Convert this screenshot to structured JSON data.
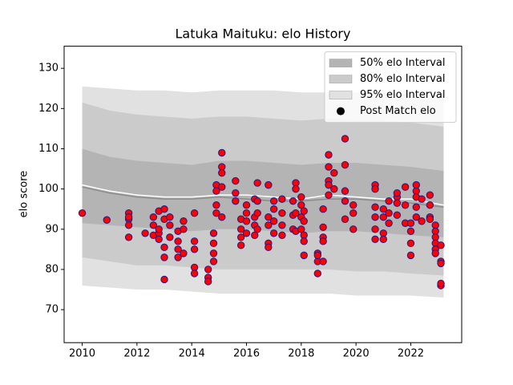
{
  "chart_data": {
    "type": "band_scatter",
    "title": "Latuka Maituku: elo History",
    "y_label": "elo score",
    "xlim": [
      2009.34,
      2023.86
    ],
    "ylim": [
      61.8,
      135.5
    ],
    "xticks": [
      2010,
      2012,
      2014,
      2016,
      2018,
      2020,
      2022
    ],
    "yticks": [
      70,
      80,
      90,
      100,
      110,
      120,
      130
    ],
    "legend": "upper right",
    "band_x": [
      2010,
      2011,
      2012,
      2013,
      2014,
      2015,
      2016,
      2017,
      2018,
      2019,
      2020,
      2021,
      2022,
      2023.2
    ],
    "series": [
      {
        "name": "50% elo Interval",
        "color": "#b4b4b4",
        "upper": [
          110,
          108,
          107,
          106.5,
          106,
          107,
          107,
          106.5,
          106,
          106.5,
          106.5,
          106,
          105.5,
          104.5
        ],
        "lower": [
          91.5,
          91,
          90.5,
          90,
          89.5,
          90,
          90,
          89.5,
          89,
          89.5,
          89.5,
          89,
          88.5,
          88
        ]
      },
      {
        "name": "80% elo Interval",
        "color": "#cbcbcb",
        "upper": [
          121.5,
          119.5,
          118.5,
          118,
          117.5,
          118,
          118,
          117.5,
          117,
          117.5,
          117,
          117,
          116.5,
          115.5
        ],
        "lower": [
          83,
          82,
          81,
          81,
          80.5,
          80,
          80,
          80,
          80,
          80,
          79.5,
          79.5,
          79,
          78.5
        ]
      },
      {
        "name": "95% elo Interval",
        "color": "#e1e1e1",
        "upper": [
          125.5,
          125,
          124.5,
          124.5,
          124,
          124.5,
          124.5,
          124.5,
          124,
          124,
          124,
          124,
          123.5,
          123
        ],
        "lower": [
          76,
          75.5,
          75,
          75,
          74.5,
          74,
          74,
          74,
          74,
          74,
          73.5,
          73.5,
          73.5,
          73
        ]
      },
      {
        "name": "Post Match elo",
        "color": "#ff0000",
        "edge_color": "#1a1a8c",
        "x": [
          2010.0,
          2010.9,
          2011.7,
          2011.7,
          2011.7,
          2011.7,
          2011.7,
          2012.3,
          2012.6,
          2012.6,
          2012.6,
          2012.8,
          2012.8,
          2012.8,
          2012.8,
          2013.0,
          2013.0,
          2013.0,
          2013.0,
          2013.0,
          2013.2,
          2013.2,
          2013.2,
          2013.5,
          2013.5,
          2013.5,
          2013.5,
          2013.7,
          2013.7,
          2013.7,
          2014.1,
          2014.1,
          2014.1,
          2014.1,
          2014.1,
          2014.6,
          2014.6,
          2014.6,
          2014.8,
          2014.8,
          2014.8,
          2014.8,
          2014.9,
          2014.9,
          2014.9,
          2014.9,
          2015.1,
          2015.1,
          2015.1,
          2015.1,
          2015.1,
          2015.6,
          2015.6,
          2015.6,
          2015.8,
          2015.8,
          2015.8,
          2015.8,
          2016.0,
          2016.0,
          2016.0,
          2016.0,
          2016.3,
          2016.3,
          2016.3,
          2016.3,
          2016.4,
          2016.4,
          2016.4,
          2016.4,
          2016.8,
          2016.8,
          2016.8,
          2016.8,
          2016.8,
          2017.0,
          2017.0,
          2017.0,
          2017.0,
          2017.3,
          2017.3,
          2017.3,
          2017.3,
          2017.7,
          2017.7,
          2017.7,
          2017.8,
          2017.8,
          2017.8,
          2017.8,
          2018.0,
          2018.0,
          2018.0,
          2018.0,
          2018.1,
          2018.1,
          2018.1,
          2018.1,
          2018.1,
          2018.6,
          2018.6,
          2018.6,
          2018.6,
          2018.8,
          2018.8,
          2018.8,
          2018.8,
          2018.8,
          2019.0,
          2019.0,
          2019.0,
          2019.0,
          2019.0,
          2019.2,
          2019.2,
          2019.6,
          2019.6,
          2019.6,
          2019.6,
          2019.6,
          2019.9,
          2019.9,
          2019.9,
          2020.7,
          2020.7,
          2020.7,
          2020.7,
          2020.7,
          2020.7,
          2021.0,
          2021.0,
          2021.0,
          2021.0,
          2021.2,
          2021.2,
          2021.2,
          2021.5,
          2021.5,
          2021.5,
          2021.5,
          2021.8,
          2021.8,
          2021.8,
          2022.0,
          2022.0,
          2022.0,
          2022.0,
          2022.2,
          2022.2,
          2022.2,
          2022.2,
          2022.2,
          2022.4,
          2022.4,
          2022.7,
          2022.7,
          2022.7,
          2022.7,
          2022.9,
          2022.9,
          2022.9,
          2022.9,
          2022.9,
          2022.9,
          2023.1,
          2023.1,
          2023.1,
          2023.1,
          2023.1
        ],
        "values": [
          94,
          92.3,
          92.5,
          91,
          88,
          94,
          93,
          89,
          93,
          91,
          88.5,
          89,
          87.5,
          94.5,
          90,
          95,
          92.5,
          85.5,
          83,
          77.5,
          93,
          91,
          88,
          89.5,
          87,
          83,
          85,
          92,
          90,
          84,
          94,
          87,
          80.5,
          79,
          85,
          80,
          78,
          77,
          82,
          84,
          86.5,
          89,
          101,
          99.5,
          96,
          94,
          93,
          100.5,
          105.5,
          104,
          109,
          102,
          99,
          97,
          92.5,
          86,
          90,
          88,
          96,
          94,
          92,
          89,
          97.5,
          93,
          91,
          88.5,
          101.5,
          97,
          94,
          90,
          101,
          93,
          91,
          86.5,
          85.5,
          95,
          92,
          89,
          97,
          97.5,
          94,
          91,
          88.5,
          97,
          93.5,
          90,
          101.5,
          100,
          94,
          89.5,
          98,
          96,
          93,
          90,
          94.5,
          92,
          88.5,
          87,
          83.5,
          84,
          82,
          83.5,
          79,
          95,
          90.5,
          88,
          87,
          82,
          98.5,
          102,
          105.5,
          108.5,
          101,
          104,
          100,
          112.5,
          106,
          99.5,
          97,
          92.5,
          94,
          96,
          90,
          95.5,
          93,
          90,
          87.5,
          101,
          100,
          95,
          93,
          89,
          87.5,
          97,
          94,
          91.5,
          98,
          99,
          96.5,
          93.5,
          100.5,
          96,
          91.5,
          89.5,
          86.5,
          83.5,
          91.5,
          99.5,
          98,
          95.5,
          93,
          101,
          97.5,
          92,
          98.5,
          96,
          93,
          92.5,
          91,
          89.5,
          88,
          86.5,
          85,
          84,
          86,
          82,
          81.5,
          76,
          76.5
        ]
      }
    ],
    "lines": [
      {
        "color": "#8c8c8c",
        "values": [
          100.5,
          99,
          98,
          97.5,
          97.5,
          98,
          97.5,
          97,
          97,
          97.5,
          97.5,
          97,
          96.5,
          95.5
        ]
      },
      {
        "color": "#ffffff",
        "values": [
          101,
          99.5,
          98.5,
          98,
          98,
          98.5,
          98.5,
          98,
          97.5,
          98.5,
          98,
          97.5,
          97.5,
          96
        ]
      }
    ]
  }
}
